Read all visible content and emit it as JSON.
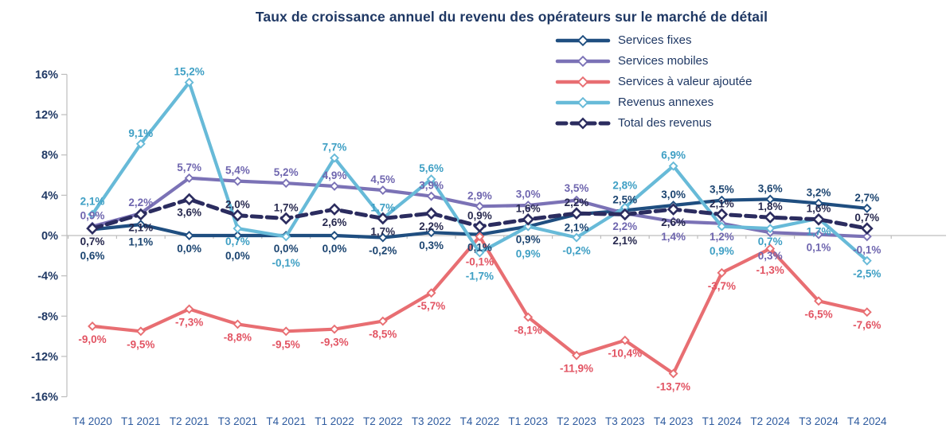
{
  "chart_data": {
    "type": "line",
    "title": "Taux de croissance annuel du revenu des opérateurs sur le marché de détail",
    "xlabel": "",
    "ylabel": "",
    "ylim": [
      -16,
      16
    ],
    "yticks": [
      16,
      12,
      8,
      4,
      0,
      -4,
      -8,
      -12,
      -16
    ],
    "ytick_suffix": "%",
    "grid": false,
    "legend_position": "top-right",
    "decimal_separator": ",",
    "categories": [
      "T4 2020",
      "T1 2021",
      "T2 2021",
      "T3 2021",
      "T4 2021",
      "T1 2022",
      "T2 2022",
      "T3 2022",
      "T4 2022",
      "T1 2023",
      "T2 2023",
      "T3 2023",
      "T4 2023",
      "T1 2024",
      "T2 2024",
      "T3 2024",
      "T4 2024"
    ],
    "series": [
      {
        "name": "Services fixes",
        "color": "#1F4E80",
        "label_color": "#1B4470",
        "dash": false,
        "values": [
          0.6,
          1.1,
          0.0,
          0.0,
          0.0,
          0.0,
          -0.2,
          0.3,
          0.1,
          0.9,
          2.1,
          2.5,
          3.0,
          3.5,
          3.6,
          3.2,
          2.7
        ],
        "label_side": [
          "b",
          "b",
          "b",
          "b",
          "b",
          "b",
          "b",
          "b",
          "b",
          "b",
          "b",
          "a",
          "a",
          "a",
          "a",
          "a",
          "a"
        ]
      },
      {
        "name": "Services mobiles",
        "color": "#7B72B6",
        "label_color": "#6F66AF",
        "dash": false,
        "values": [
          0.9,
          2.2,
          5.7,
          5.4,
          5.2,
          4.9,
          4.5,
          3.9,
          2.9,
          3.0,
          3.5,
          2.2,
          1.4,
          1.2,
          0.3,
          0.1,
          -0.1
        ],
        "label_side": [
          "a",
          "a",
          "a",
          "a",
          "a",
          "a",
          "a",
          "a",
          "a",
          "a",
          "a",
          "b",
          "b",
          "b",
          "b",
          "b",
          "b"
        ]
      },
      {
        "name": "Services à valeur ajoutée",
        "color": "#E86E72",
        "label_color": "#E25463",
        "dash": false,
        "values": [
          -9.0,
          -9.5,
          -7.3,
          -8.8,
          -9.5,
          -9.3,
          -8.5,
          -5.7,
          -0.1,
          -8.1,
          -11.9,
          -10.4,
          -13.7,
          -3.7,
          -1.3,
          -6.5,
          -7.6
        ],
        "label_side": [
          "b",
          "b",
          "b",
          "b",
          "b",
          "b",
          "b",
          "b",
          "b",
          "b",
          "b",
          "b",
          "b",
          "b",
          "b",
          "b",
          "b"
        ]
      },
      {
        "name": "Revenus annexes",
        "color": "#67BAD8",
        "label_color": "#3E9FC4",
        "dash": false,
        "values": [
          2.1,
          9.1,
          15.2,
          0.7,
          -0.1,
          7.7,
          1.7,
          5.6,
          -1.7,
          0.9,
          -0.2,
          2.8,
          6.9,
          0.9,
          0.7,
          1.7,
          -2.5
        ],
        "label_side": [
          "a",
          "a",
          "a",
          "b",
          "b",
          "a",
          "a",
          "a",
          "b",
          "b",
          "b",
          "a",
          "a",
          "b",
          "b",
          "b",
          "b"
        ]
      },
      {
        "name": "Total des revenus",
        "color": "#2B2C5F",
        "label_color": "#27294F",
        "dash": true,
        "values": [
          0.7,
          2.1,
          3.6,
          2.0,
          1.7,
          2.6,
          1.7,
          2.2,
          0.9,
          1.6,
          2.2,
          2.1,
          2.6,
          2.1,
          1.8,
          1.6,
          0.7
        ],
        "label_side": [
          "b",
          "b",
          "b",
          "a",
          "a",
          "b",
          "b",
          "b",
          "a",
          "a",
          "a",
          "b",
          "b",
          "a",
          "a",
          "a",
          "a"
        ]
      }
    ]
  }
}
